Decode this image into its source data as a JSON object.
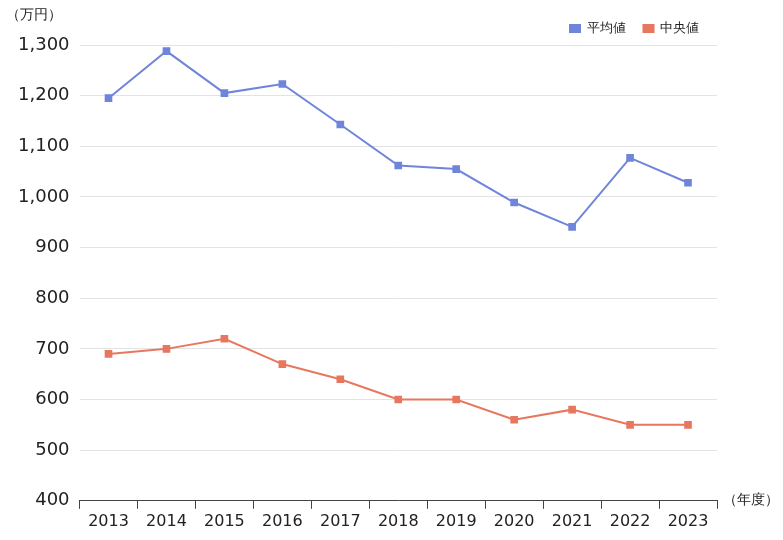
{
  "chart_data": {
    "type": "line",
    "y_label": "（万円）",
    "x_label": "（年度）",
    "categories": [
      "2013",
      "2014",
      "2015",
      "2016",
      "2017",
      "2018",
      "2019",
      "2020",
      "2021",
      "2022",
      "2023"
    ],
    "series": [
      {
        "name": "平均値",
        "color": "#6f85db",
        "marker": "square",
        "values": [
          1195,
          1288,
          1205,
          1223,
          1143,
          1062,
          1055,
          989,
          941,
          1077,
          1028
        ]
      },
      {
        "name": "中央値",
        "color": "#e8775f",
        "marker": "square",
        "values": [
          690,
          700,
          720,
          670,
          640,
          600,
          600,
          560,
          580,
          550,
          550
        ]
      }
    ],
    "ylim": [
      400,
      1300
    ],
    "yticks": [
      400,
      500,
      600,
      700,
      800,
      900,
      {
        "value": 1000,
        "label": "1,000"
      },
      {
        "value": 1100,
        "label": "1,100"
      },
      {
        "value": 1200,
        "label": "1,200"
      },
      {
        "value": 1300,
        "label": "1,300"
      }
    ],
    "grid": true,
    "legend": "top-right"
  }
}
